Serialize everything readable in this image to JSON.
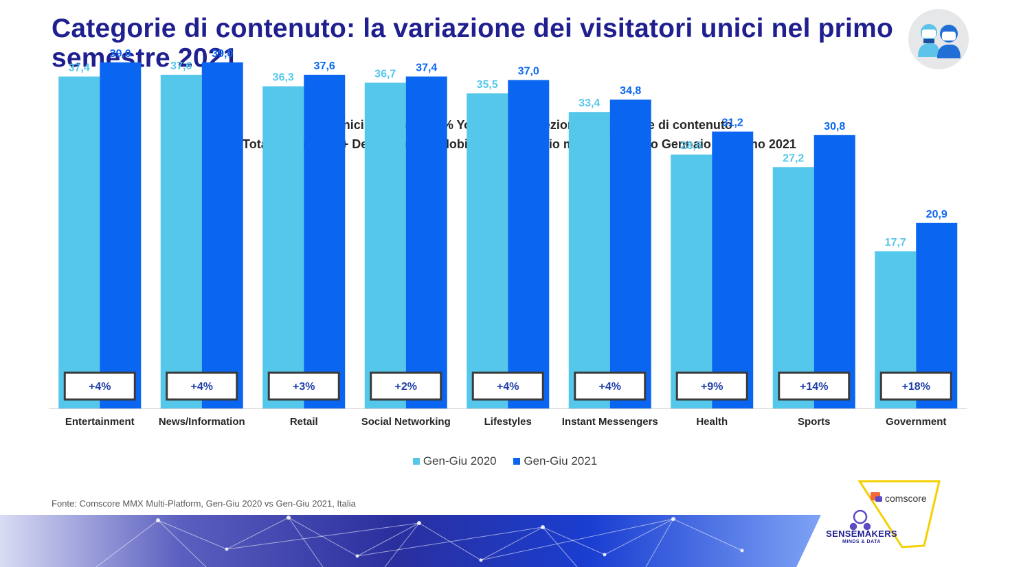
{
  "slide": {
    "title": "Categorie di contenuto: la variazione dei visitatori unici nel primo semestre 2021",
    "source": "Fonte: Comscore MMX Multi-Platform, Gen-Giu 2020 vs Gen-Giu 2021, Italia"
  },
  "logos": {
    "comscore": "comscore",
    "sensemakers": "SENSEMAKERS",
    "sensemakers_tagline": "MINDS & DATA",
    "avatar_icon": "people-icon"
  },
  "colors": {
    "series_2020": "#55c7eb",
    "series_2021": "#0a66f0",
    "title": "#1f1f8f",
    "accent_yellow": "#f5d000"
  },
  "chart_data": {
    "type": "bar",
    "title": "Visitatori Unici e Variazione % YoY su una selezione di categorie di contenuto",
    "subtitle": "ITA | Total Universe (6+ Desktop e 18+ Mobile)  | Dato medio mensile periodo Gennaio - Giugno 2021",
    "categories": [
      "Entertainment",
      "News/Information",
      "Retail",
      "Social Networking",
      "Lifestyles",
      "Instant Messengers",
      "Health",
      "Sports",
      "Government"
    ],
    "series": [
      {
        "name": "Gen-Giu 2020",
        "values": [
          37.4,
          37.6,
          36.3,
          36.7,
          35.5,
          33.4,
          28.6,
          27.2,
          17.7
        ],
        "labels": [
          "37,4",
          "37,6",
          "36,3",
          "36,7",
          "35,5",
          "33,4",
          "28,6",
          "27,2",
          "17,7"
        ]
      },
      {
        "name": "Gen-Giu 2021",
        "values": [
          39.0,
          39.0,
          37.6,
          37.4,
          37.0,
          34.8,
          31.2,
          30.8,
          20.9
        ],
        "labels": [
          "39,0",
          "39,0",
          "37,6",
          "37,4",
          "37,0",
          "34,8",
          "31,2",
          "30,8",
          "20,9"
        ]
      }
    ],
    "yoy_change": [
      "+4%",
      "+4%",
      "+3%",
      "+2%",
      "+4%",
      "+4%",
      "+9%",
      "+14%",
      "+18%"
    ],
    "ylim": [
      0,
      42
    ],
    "xlabel": "",
    "ylabel": "",
    "grid": false,
    "legend": "bottom-center"
  }
}
